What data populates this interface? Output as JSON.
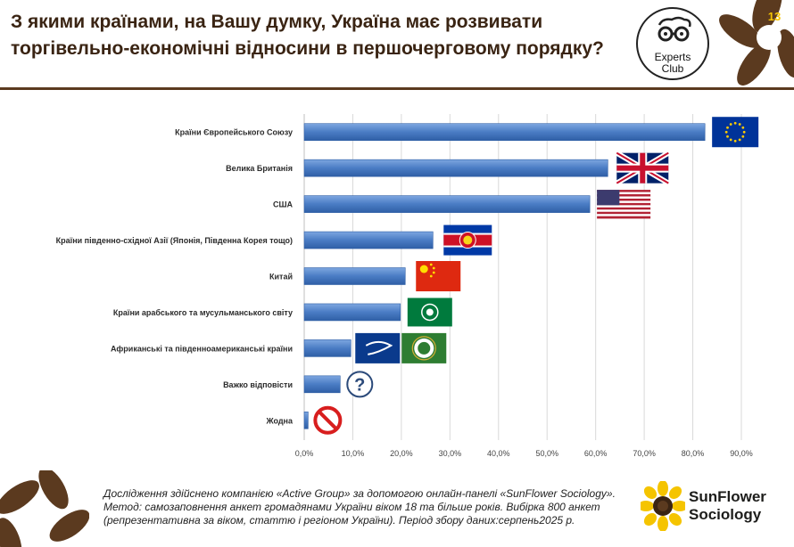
{
  "header": {
    "title": "З якими країнами, на Вашу думку, Україна має розвивати торгівельно-економічні відносини в першочерговому порядку?",
    "page_number": "13",
    "experts_logo": {
      "line1": "Experts",
      "line2": "Club",
      "icon": "glasses-face-icon"
    }
  },
  "chart_data": {
    "type": "bar",
    "orientation": "horizontal",
    "categories": [
      "Країни Європейського Союзу",
      "Велика Британія",
      "США",
      "Країни південно-східної Азії (Японія, Південна Корея тощо)",
      "Китай",
      "Країни арабського та мусульманського світу",
      "Африканські та південноамериканські країни",
      "Важко відповісти",
      "Жодна"
    ],
    "values": [
      82.5,
      62.5,
      58.8,
      26.5,
      20.8,
      19.8,
      9.6,
      7.4,
      0.8
    ],
    "xlim": [
      0,
      90
    ],
    "xticks": [
      "0,0%",
      "10,0%",
      "20,0%",
      "30,0%",
      "40,0%",
      "50,0%",
      "60,0%",
      "70,0%",
      "80,0%",
      "90,0%"
    ],
    "grid": true,
    "bar_color": "#4a7cc4",
    "flags": [
      "eu-flag-icon",
      "uk-flag-icon",
      "usa-flag-icon",
      "asean-flag-icon",
      "china-flag-icon",
      "arab-league-flag-icon",
      "unasur-flag-icon african-union-flag-icon",
      "question-mark-icon",
      "prohibited-icon"
    ]
  },
  "footer": {
    "note": "Дослідження здійснено компанією «Active Group» за допомогою онлайн-панелі «SunFlower Sociology». Метод: самозаповнення анкет громадянами України віком 18 та більше років. Вибірка 800 анкет (репрезентативна за віком, статтю і регіоном України). Період збору даних:серпень2025 р.",
    "brand_line1": "SunFlower",
    "brand_line2": "Sociology"
  },
  "colors": {
    "brown": "#5b3a1f",
    "accent_yellow": "#f5c400",
    "title": "#3a2413"
  }
}
